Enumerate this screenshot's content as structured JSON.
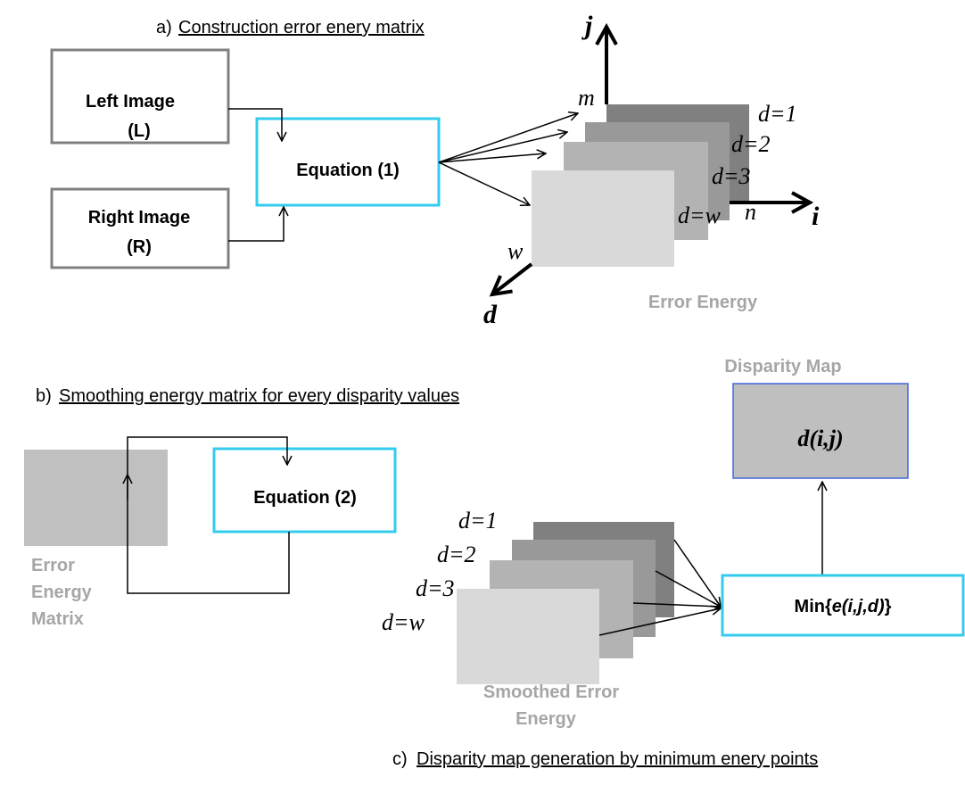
{
  "section_a": {
    "label": "a)",
    "title": "Construction error enery matrix"
  },
  "left_image": {
    "line1": "Left Image",
    "line2": "(L)"
  },
  "right_image": {
    "line1": "Right Image",
    "line2": "(R)"
  },
  "equation_1": "Equation (1)",
  "axes": {
    "j": "j",
    "m": "m",
    "i": "i",
    "n": "n",
    "w": "w",
    "d": "d"
  },
  "error_layers": [
    "d=1",
    "d=2",
    "d=3",
    "d=w"
  ],
  "error_energy": "Error Energy",
  "section_b": {
    "label": "b)",
    "title": "Smoothing energy matrix for every disparity values"
  },
  "equation_2": "Equation (2)",
  "error_energy_matrix": [
    "Error",
    "Energy",
    "Matrix"
  ],
  "disparity_map": {
    "title": "Disparity Map",
    "content": "d(i,j)"
  },
  "smoothed_layers": [
    "d=1",
    "d=2",
    "d=3",
    "d=w"
  ],
  "min_box": {
    "prefix": "Min{",
    "expr": "e(i,j,d)",
    "suffix": "}"
  },
  "smoothed_error_energy": [
    "Smoothed Error",
    "Energy"
  ],
  "section_c": {
    "label": "c)",
    "title": "Disparity map generation by minimum enery points"
  }
}
